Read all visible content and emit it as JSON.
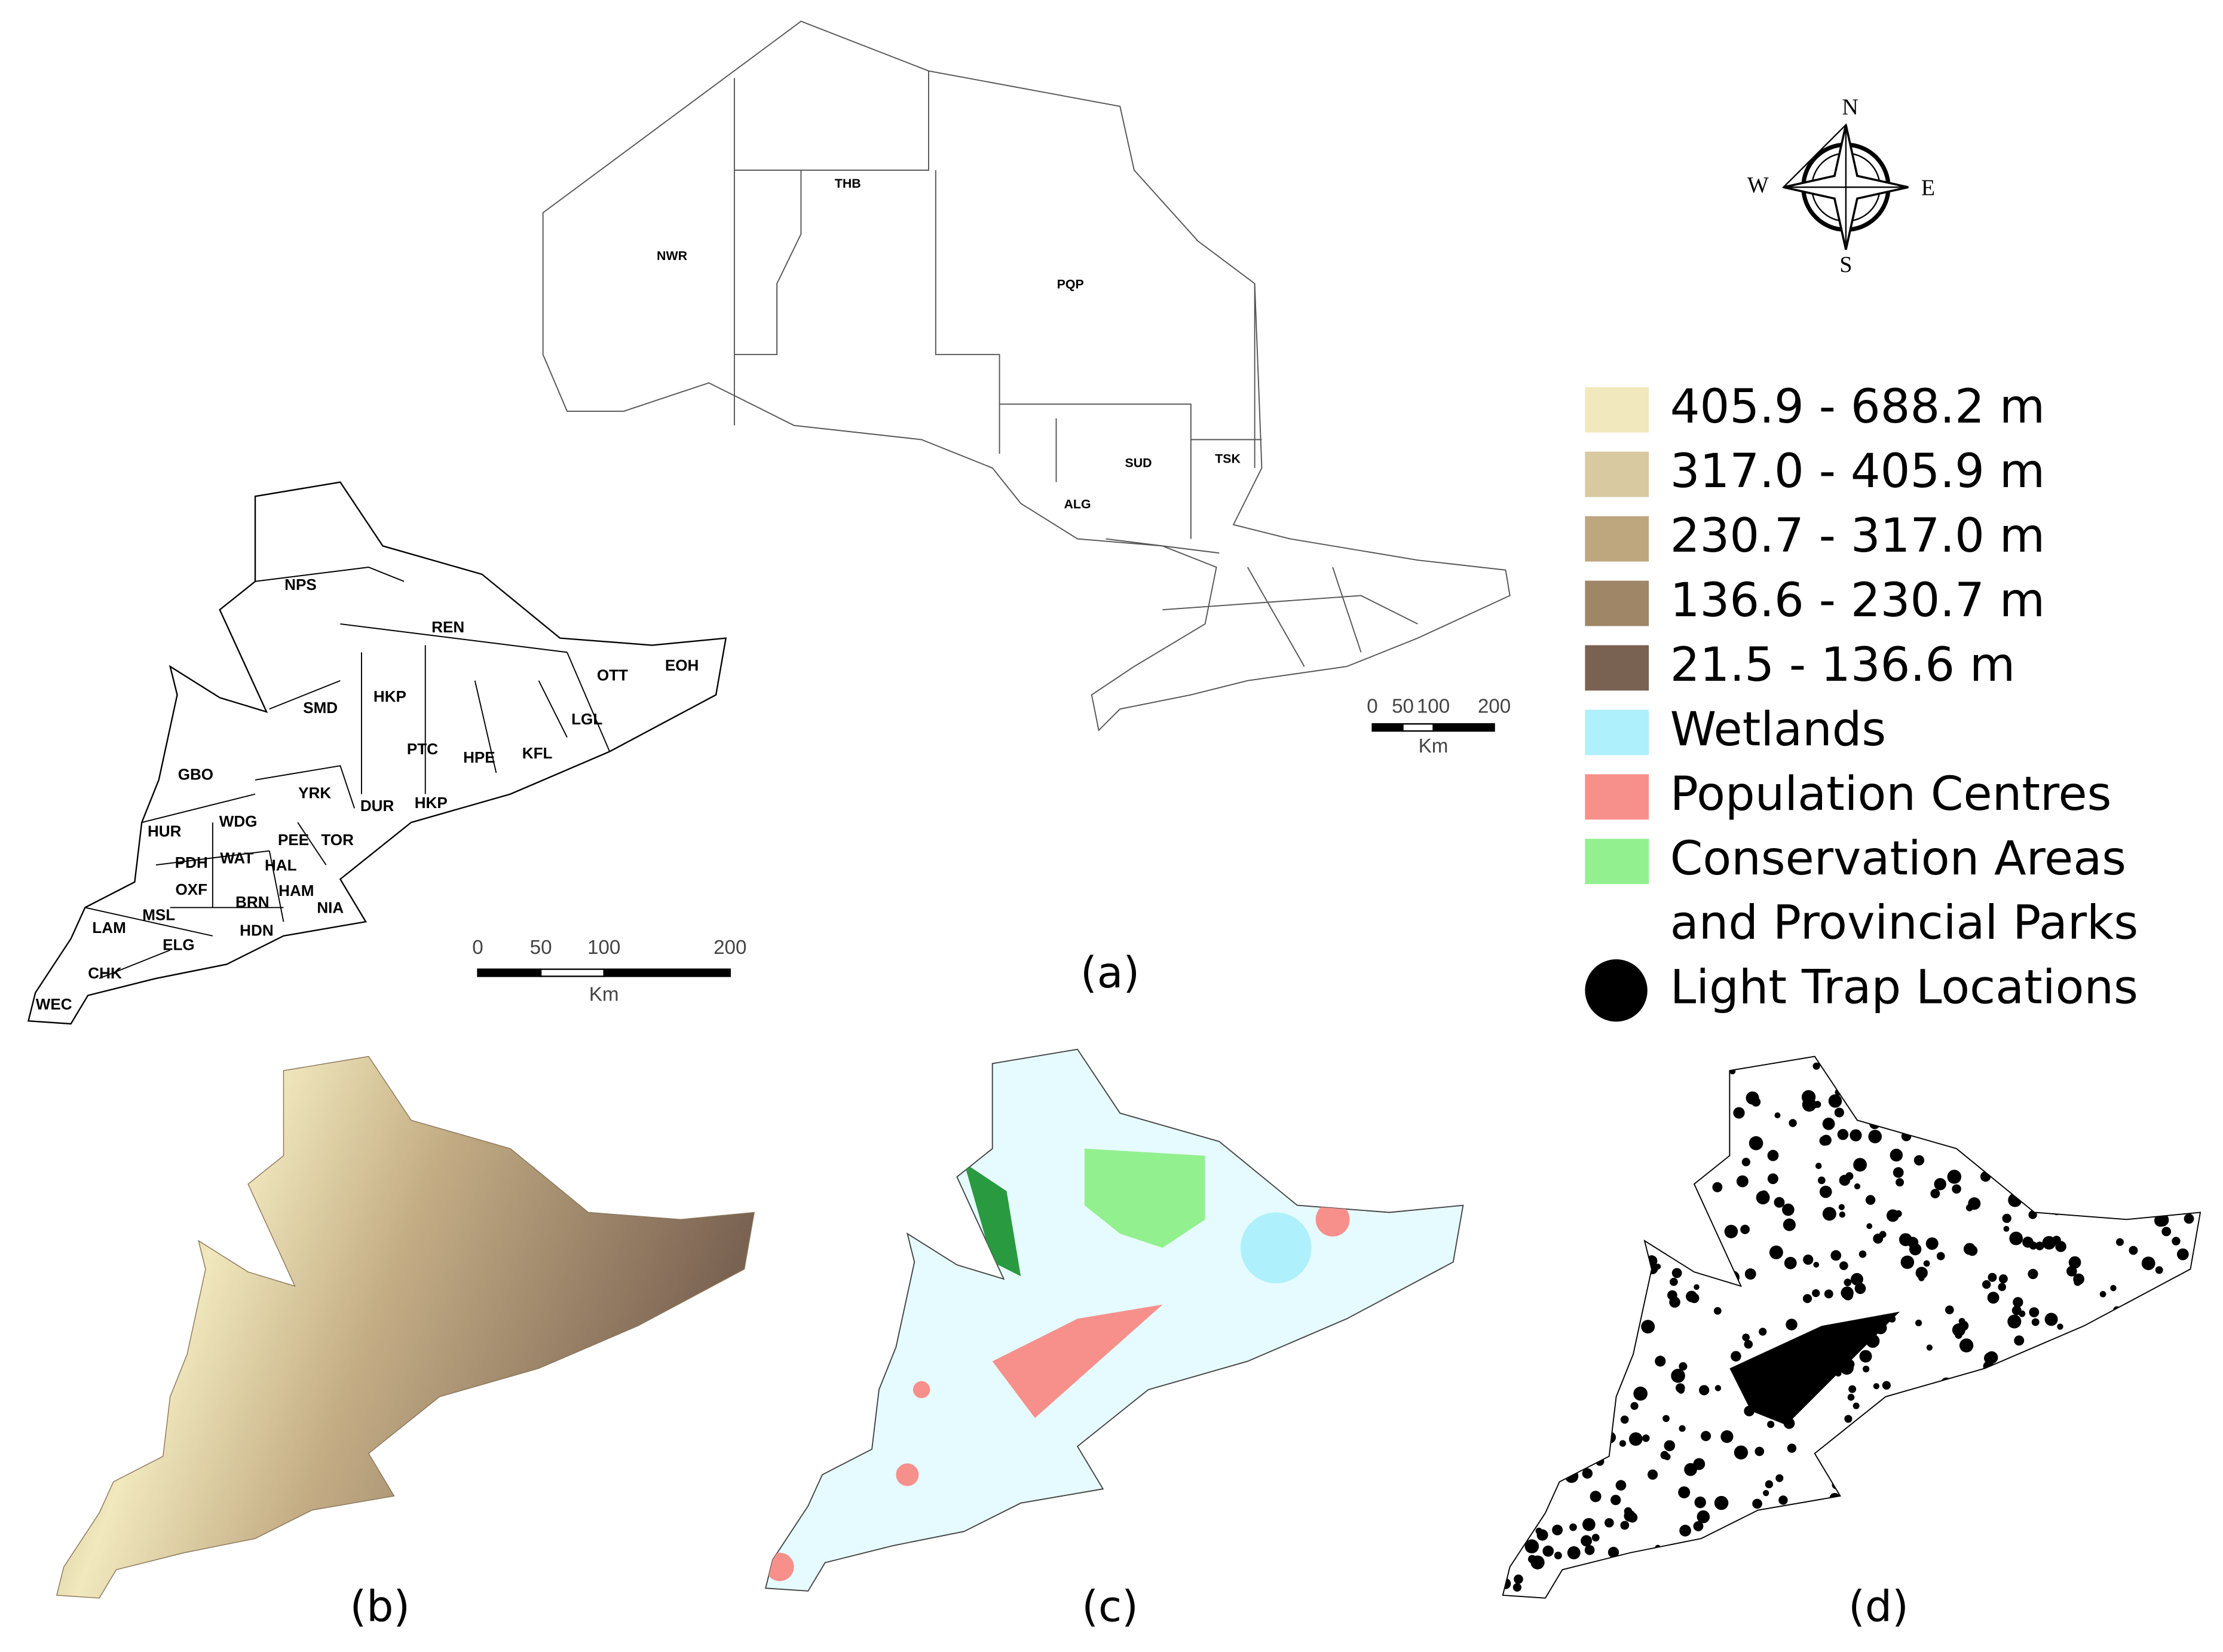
{
  "panel_a": {
    "label": "(a)",
    "north_regions": [
      "NWR",
      "THB",
      "PQP",
      "SUD",
      "TSK",
      "ALG"
    ],
    "south_regions": [
      "NPS",
      "REN",
      "SMD",
      "HKP",
      "OTT",
      "EOH",
      "LGL",
      "KFL",
      "PTC",
      "HPE",
      "GBO",
      "YRK",
      "DUR",
      "HKP",
      "HUR",
      "WDG",
      "PEE",
      "TOR",
      "PDH",
      "WAT",
      "HAL",
      "OXF",
      "HAM",
      "BRN",
      "NIA",
      "LAM",
      "MSL",
      "ELG",
      "HDN",
      "CHK",
      "WEC"
    ],
    "scale_bars": [
      {
        "ticks": [
          0,
          50,
          100,
          200
        ],
        "unit": "Km"
      },
      {
        "ticks": [
          0,
          50,
          100,
          200
        ],
        "unit": "Km"
      }
    ],
    "compass": {
      "north": "N",
      "east": "E",
      "south": "S",
      "west": "W"
    }
  },
  "legend": {
    "items": [
      {
        "label_lines": [
          "405.9 - 688.2 m"
        ],
        "color": "#f1e8bd"
      },
      {
        "label_lines": [
          "317.0 - 405.9 m"
        ],
        "color": "#d8c9a1"
      },
      {
        "label_lines": [
          "230.7 - 317.0 m"
        ],
        "color": "#bea67f"
      },
      {
        "label_lines": [
          "136.6 - 230.7 m"
        ],
        "color": "#9e8667"
      },
      {
        "label_lines": [
          "21.5 - 136.6 m"
        ],
        "color": "#7a6252"
      },
      {
        "label_lines": [
          "Wetlands"
        ],
        "color": "#aef0fc"
      },
      {
        "label_lines": [
          "Population Centres"
        ],
        "color": "#f7908a"
      },
      {
        "label_lines": [
          "Conservation Areas",
          "and Provincial Parks"
        ],
        "color": "#93f08f"
      },
      {
        "label_lines": [
          "Light Trap Locations"
        ],
        "color": "#000000",
        "shape": "circle"
      }
    ]
  },
  "panel_b": {
    "label": "(b)"
  },
  "panel_c": {
    "label": "(c)"
  },
  "panel_d": {
    "label": "(d)"
  }
}
